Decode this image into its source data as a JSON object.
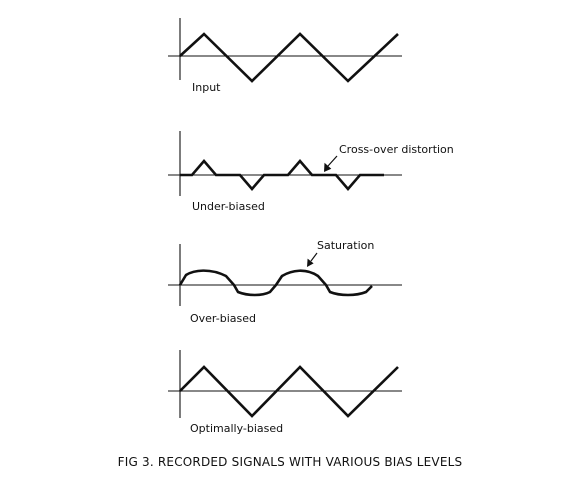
{
  "figure": {
    "caption": "FIG 3. RECORDED SIGNALS WITH VARIOUS BIAS LEVELS",
    "panels": [
      {
        "id": "input",
        "label": "Input"
      },
      {
        "id": "under",
        "label": "Under-biased",
        "annotation": "Cross-over distortion"
      },
      {
        "id": "over",
        "label": "Over-biased",
        "annotation": "Saturation"
      },
      {
        "id": "optimal",
        "label": "Optimally-biased"
      }
    ]
  },
  "colors": {
    "ink": "#111111",
    "background": "#ffffff"
  }
}
